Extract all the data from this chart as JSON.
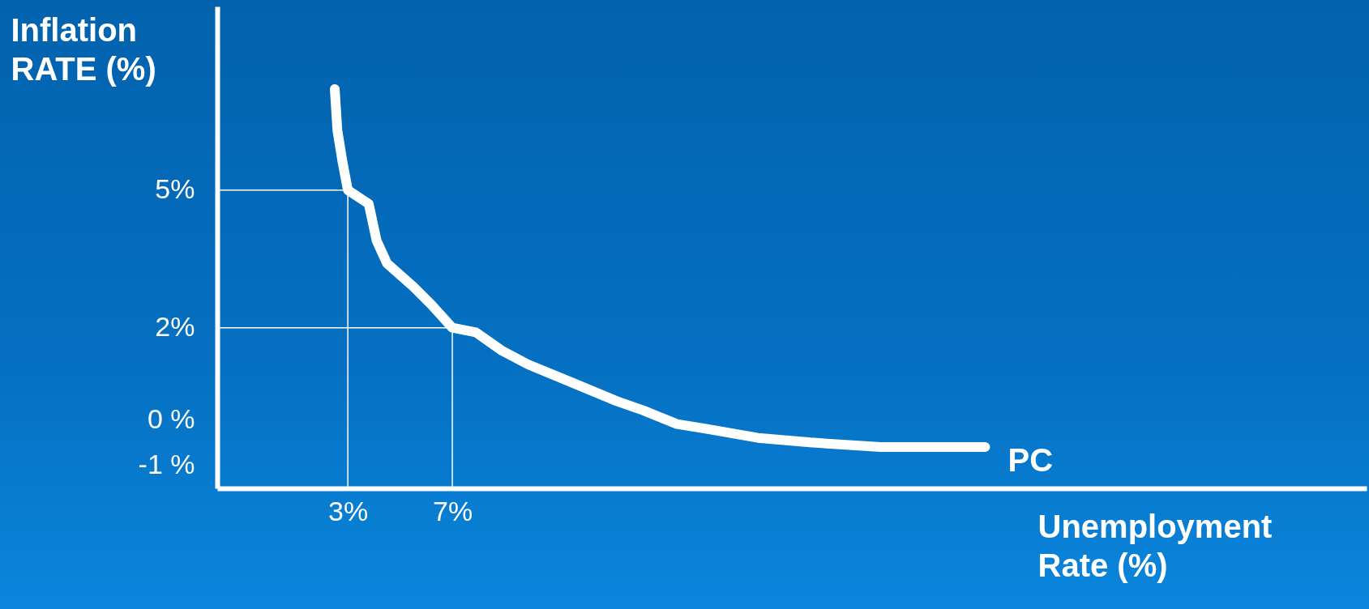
{
  "chart_data": {
    "type": "line",
    "xlabel": "Unemployment\nRate (%)",
    "ylabel": "Inflation\nRATE (%)",
    "xlim": [
      -2,
      42
    ],
    "ylim": [
      -1.5,
      9
    ],
    "xticks": [
      {
        "value": 3,
        "label": "3%"
      },
      {
        "value": 7,
        "label": "7%"
      }
    ],
    "yticks": [
      {
        "value": 5,
        "label": "5%"
      },
      {
        "value": 2,
        "label": "2%"
      },
      {
        "value": 0,
        "label": "0 %"
      },
      {
        "value": -1,
        "label": "-1 %"
      }
    ],
    "series": [
      {
        "name": "PC",
        "color": "#ffffff",
        "x": [
          2.5,
          2.6,
          2.8,
          3,
          3.8,
          4.1,
          4.5,
          5.5,
          6.2,
          7,
          7.9,
          8.9,
          9.9,
          11.6,
          13.3,
          14.3,
          15.6,
          16.7,
          18.7,
          20.7,
          23.4,
          25.8,
          27.4
        ],
        "values": [
          7.2,
          6.3,
          5.6,
          5,
          4.7,
          3.9,
          3.4,
          2.9,
          2.5,
          2,
          1.9,
          1.5,
          1.2,
          0.8,
          0.4,
          0.2,
          -0.1,
          -0.2,
          -0.4,
          -0.5,
          -0.6,
          -0.6,
          -0.6
        ]
      }
    ],
    "ref_lines": [
      {
        "axis": "x",
        "value": 3,
        "color": "#ffffff"
      },
      {
        "axis": "y",
        "value": 5,
        "color": "#ffffff"
      },
      {
        "axis": "x",
        "value": 7,
        "color": "#ffffff"
      },
      {
        "axis": "y",
        "value": 2,
        "color": "#ffffff"
      }
    ]
  }
}
